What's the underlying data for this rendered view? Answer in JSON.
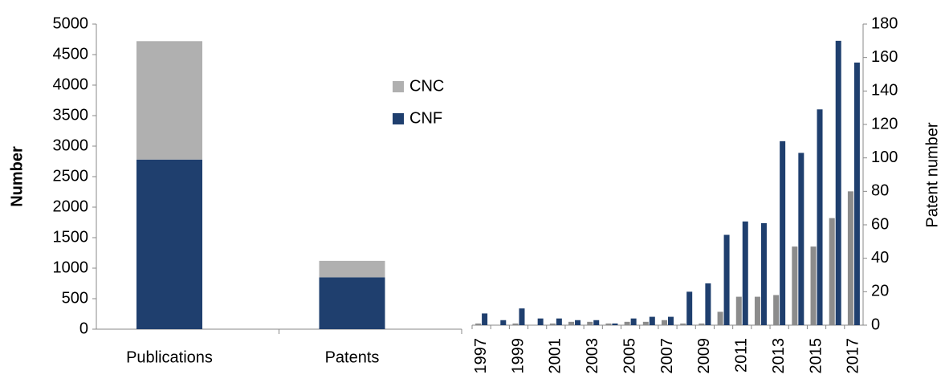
{
  "chart_data": [
    {
      "type": "bar",
      "stacked": true,
      "ylabel": "Number",
      "categories": [
        "Publications",
        "Patents"
      ],
      "series": [
        {
          "name": "CNF",
          "color": "#1f3f6e",
          "values": [
            2780,
            850
          ]
        },
        {
          "name": "CNC",
          "color": "#b0b0b0",
          "values": [
            1940,
            270
          ]
        }
      ],
      "ylim": [
        0,
        5000
      ],
      "yticks": [
        0,
        500,
        1000,
        1500,
        2000,
        2500,
        3000,
        3500,
        4000,
        4500,
        5000
      ],
      "legend": "right"
    },
    {
      "type": "bar",
      "stacked": false,
      "y2label": "Patent number",
      "categories": [
        "1997",
        null,
        "1999",
        null,
        "2001",
        null,
        "2003",
        null,
        "2005",
        null,
        "2007",
        null,
        "2009",
        null,
        "2011",
        null,
        "2013",
        null,
        "2015",
        null,
        "2017"
      ],
      "series": [
        {
          "name": "CNC",
          "color": "#8c8c8c",
          "axis": "y2",
          "values": [
            1,
            0,
            1,
            0,
            1,
            2,
            2,
            1,
            2,
            2,
            3,
            1,
            1,
            8,
            17,
            17,
            18,
            47,
            47,
            64,
            80
          ]
        },
        {
          "name": "CNF",
          "color": "#1f3f6e",
          "axis": "y2",
          "values": [
            7,
            3,
            10,
            4,
            4,
            3,
            3,
            1,
            4,
            5,
            5,
            20,
            25,
            54,
            62,
            61,
            110,
            103,
            129,
            170,
            157
          ]
        }
      ],
      "y2lim": [
        0,
        180
      ],
      "y2ticks": [
        0,
        20,
        40,
        60,
        80,
        100,
        120,
        140,
        160,
        180
      ]
    }
  ]
}
